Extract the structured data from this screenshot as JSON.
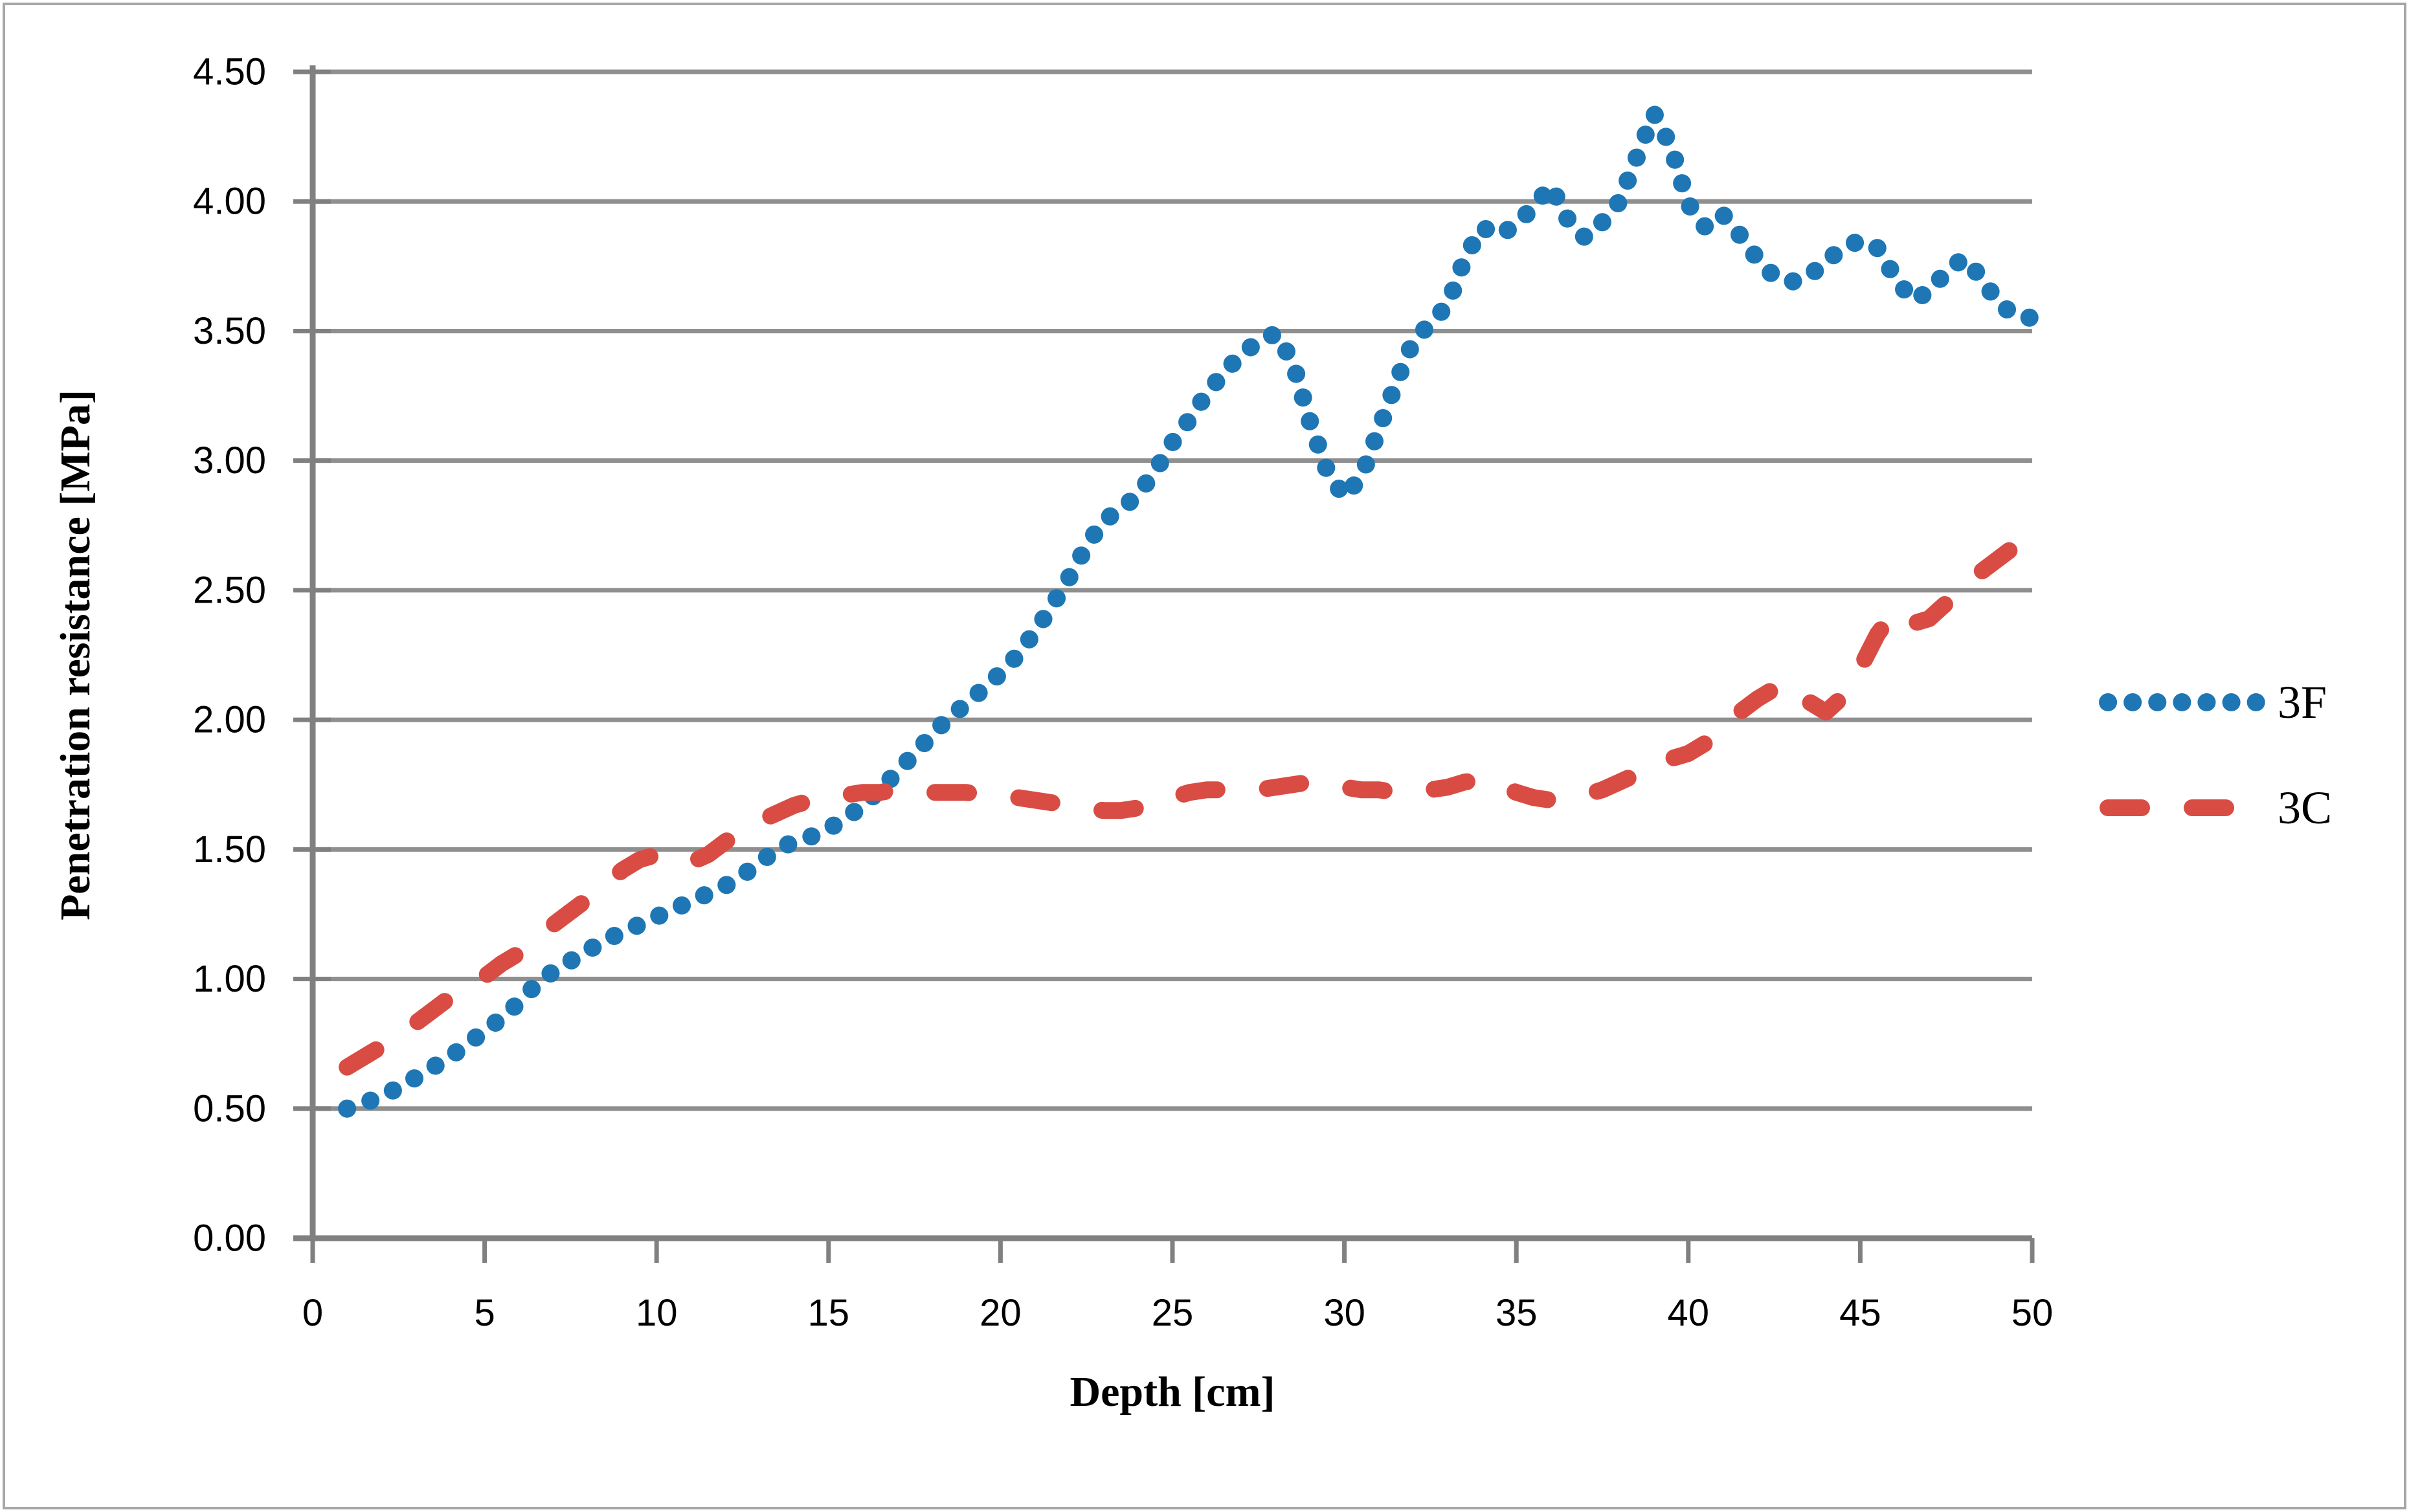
{
  "chart_data": {
    "type": "line",
    "title": "",
    "xlabel": "Depth [cm]",
    "ylabel": "Penetration resistance [MPa]",
    "xlim": [
      0,
      50
    ],
    "ylim": [
      0,
      4.5
    ],
    "x_ticks": [
      "0",
      "5",
      "10",
      "15",
      "20",
      "25",
      "30",
      "35",
      "40",
      "45",
      "50"
    ],
    "y_ticks": [
      "0.00",
      "0.50",
      "1.00",
      "1.50",
      "2.00",
      "2.50",
      "3.00",
      "3.50",
      "4.00",
      "4.50"
    ],
    "grid": "horizontal gridlines on, vertical off",
    "legend_position": "right middle",
    "x": [
      1,
      1.5,
      2,
      2.5,
      3,
      3.5,
      4,
      4.5,
      5,
      5.5,
      6,
      6.5,
      7,
      7.5,
      8,
      8.5,
      9,
      9.5,
      10,
      10.5,
      11,
      11.5,
      12,
      12.5,
      13,
      13.5,
      14,
      14.5,
      15,
      15.5,
      16,
      16.5,
      17,
      17.5,
      18,
      18.5,
      19,
      19.5,
      20,
      20.5,
      21,
      21.5,
      22,
      22.5,
      23,
      23.5,
      24,
      24.5,
      25,
      25.5,
      26,
      26.5,
      27,
      27.5,
      28,
      28.5,
      29,
      29.5,
      30,
      30.5,
      31,
      31.5,
      32,
      32.5,
      33,
      33.5,
      34,
      34.5,
      35,
      35.5,
      36,
      36.5,
      37,
      37.5,
      38,
      38.5,
      39,
      39.5,
      40,
      40.5,
      41,
      41.5,
      42,
      42.5,
      43,
      43.5,
      44,
      44.5,
      45,
      45.5,
      46,
      46.5,
      47,
      47.5,
      48,
      48.5,
      49,
      49.5,
      50
    ],
    "series": [
      {
        "name": "3F",
        "style": "dotted",
        "color": "#1E77B4",
        "values": [
          0.5,
          0.52,
          0.55,
          0.58,
          0.62,
          0.66,
          0.7,
          0.75,
          0.8,
          0.85,
          0.91,
          0.98,
          1.03,
          1.07,
          1.11,
          1.15,
          1.18,
          1.21,
          1.24,
          1.27,
          1.3,
          1.33,
          1.36,
          1.4,
          1.45,
          1.5,
          1.53,
          1.55,
          1.58,
          1.62,
          1.67,
          1.73,
          1.8,
          1.87,
          1.94,
          2.01,
          2.06,
          2.12,
          2.18,
          2.25,
          2.34,
          2.44,
          2.55,
          2.67,
          2.77,
          2.81,
          2.87,
          2.96,
          3.07,
          3.16,
          3.26,
          3.34,
          3.41,
          3.46,
          3.49,
          3.38,
          3.15,
          2.96,
          2.86,
          2.94,
          3.12,
          3.3,
          3.46,
          3.53,
          3.6,
          3.78,
          3.9,
          3.87,
          3.91,
          3.98,
          4.06,
          3.93,
          3.86,
          3.92,
          4.0,
          4.17,
          4.34,
          4.21,
          3.99,
          3.9,
          3.95,
          3.87,
          3.78,
          3.71,
          3.69,
          3.71,
          3.77,
          3.82,
          3.85,
          3.82,
          3.71,
          3.62,
          3.65,
          3.73,
          3.78,
          3.71,
          3.61,
          3.56,
          3.55
        ]
      },
      {
        "name": "3C",
        "style": "dashed",
        "color": "#D94C44",
        "values": [
          0.66,
          0.7,
          0.74,
          0.79,
          0.83,
          0.88,
          0.93,
          0.97,
          1.01,
          1.06,
          1.1,
          1.15,
          1.21,
          1.26,
          1.31,
          1.36,
          1.42,
          1.46,
          1.48,
          1.46,
          1.45,
          1.48,
          1.53,
          1.57,
          1.61,
          1.64,
          1.67,
          1.69,
          1.7,
          1.71,
          1.72,
          1.72,
          1.73,
          1.73,
          1.72,
          1.72,
          1.72,
          1.71,
          1.71,
          1.7,
          1.69,
          1.68,
          1.67,
          1.66,
          1.65,
          1.65,
          1.66,
          1.68,
          1.7,
          1.72,
          1.73,
          1.73,
          1.73,
          1.73,
          1.74,
          1.75,
          1.76,
          1.75,
          1.74,
          1.73,
          1.73,
          1.72,
          1.72,
          1.73,
          1.74,
          1.76,
          1.77,
          1.75,
          1.72,
          1.7,
          1.69,
          1.7,
          1.71,
          1.73,
          1.76,
          1.79,
          1.83,
          1.85,
          1.87,
          1.91,
          1.96,
          2.03,
          2.08,
          2.12,
          2.14,
          2.07,
          2.03,
          2.09,
          2.2,
          2.33,
          2.42,
          2.37,
          2.39,
          2.45,
          2.52,
          2.57,
          2.62,
          2.67,
          2.71
        ]
      }
    ]
  },
  "colors": {
    "gridline": "#8F8F8F",
    "axis": "#808080",
    "outer_border": "#A6A6A6",
    "background": "#FFFFFF",
    "series_3F": "#1E77B4",
    "series_3C": "#D94C44",
    "text": "#000000"
  },
  "legend": {
    "items": [
      {
        "label": "3F"
      },
      {
        "label": "3C"
      }
    ]
  }
}
